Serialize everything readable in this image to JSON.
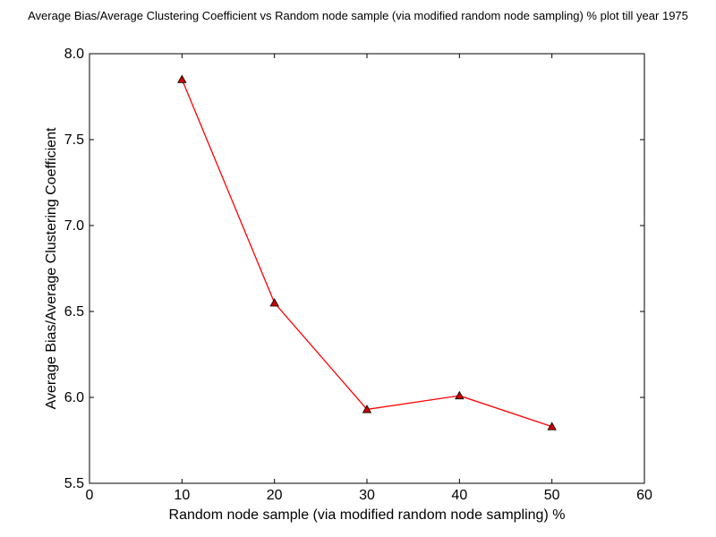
{
  "chart_data": {
    "type": "line",
    "title": "Average Bias/Average Clustering Coefficient vs Random node sample (via modified random node sampling) % plot till year 1975",
    "xlabel": "Random node sample (via modified random node sampling) %",
    "ylabel": "Average Bias/Average Clustering Coefficient",
    "xlim": [
      0,
      60
    ],
    "ylim": [
      5.5,
      8.0
    ],
    "xticks": [
      0,
      10,
      20,
      30,
      40,
      50,
      60
    ],
    "yticks": [
      5.5,
      6.0,
      6.5,
      7.0,
      7.5,
      8.0
    ],
    "xtick_labels": [
      "0",
      "10",
      "20",
      "30",
      "40",
      "50",
      "60"
    ],
    "ytick_labels": [
      "5.5",
      "6.0",
      "6.5",
      "7.0",
      "7.5",
      "8.0"
    ],
    "grid": false,
    "series": [
      {
        "x": [
          10,
          20,
          30,
          40,
          50
        ],
        "y": [
          7.85,
          6.55,
          5.93,
          6.01,
          5.83
        ],
        "color": "#ff0000",
        "marker": "triangle",
        "marker_color": "#cc0000"
      }
    ]
  }
}
